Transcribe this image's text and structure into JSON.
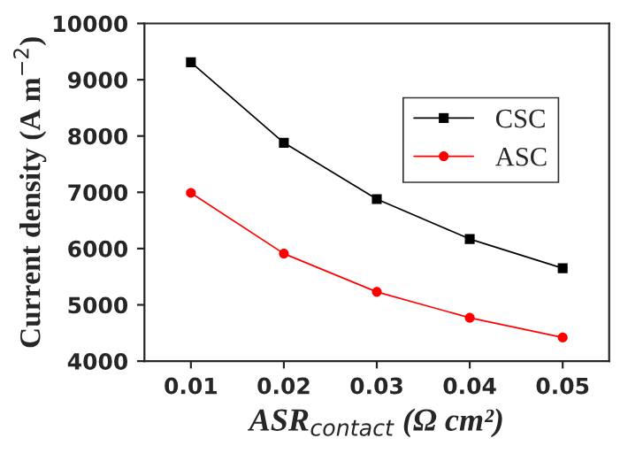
{
  "chart_data": {
    "type": "line",
    "xlabel": "ASR$_{contact}$ (Ω cm²)",
    "ylabel": "Current density (A m$^{−2}$)",
    "x": [
      0.01,
      0.02,
      0.03,
      0.04,
      0.05
    ],
    "series": [
      {
        "name": "CSC",
        "color": "#000000",
        "marker": "square",
        "values": [
          9310,
          7880,
          6880,
          6170,
          5650
        ]
      },
      {
        "name": "ASC",
        "color": "#ff0000",
        "marker": "circle",
        "values": [
          6990,
          5910,
          5230,
          4770,
          4420
        ]
      }
    ],
    "xlim": [
      0.005,
      0.055
    ],
    "xticks": [
      {
        "value": 0.01,
        "label": "0.01"
      },
      {
        "value": 0.02,
        "label": "0.02"
      },
      {
        "value": 0.03,
        "label": "0.03"
      },
      {
        "value": 0.04,
        "label": "0.04"
      },
      {
        "value": 0.05,
        "label": "0.05"
      }
    ],
    "ylim": [
      4000,
      10000
    ],
    "yticks": [
      4000,
      5000,
      6000,
      7000,
      8000,
      9000,
      10000
    ],
    "line_style": "solid",
    "grid": false,
    "legend": "top right"
  }
}
